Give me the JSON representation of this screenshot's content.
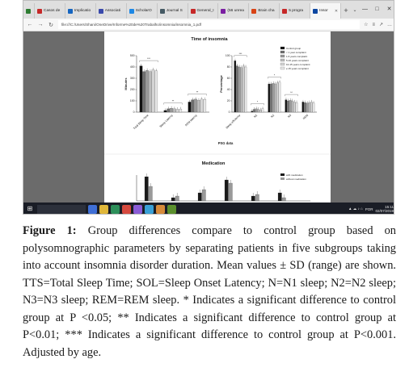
{
  "browser": {
    "tabs": [
      {
        "label": "",
        "color": "#2e7d32"
      },
      {
        "label": "Casos de",
        "color": "#c62828"
      },
      {
        "label": "Implicatio",
        "color": "#1565c0"
      },
      {
        "label": "Associati",
        "color": "#3949ab"
      },
      {
        "label": "ScholarO",
        "color": "#1e88e5"
      },
      {
        "label": "Journal S",
        "color": "#455a64"
      },
      {
        "label": "General_I",
        "color": "#c62828"
      },
      {
        "label": "(56 unrea",
        "color": "#7b1fa2"
      },
      {
        "label": "Brain cha",
        "color": "#d84315"
      },
      {
        "label": "5 progra",
        "color": "#c62828"
      },
      {
        "label": "Insor",
        "color": "#0d47a1"
      }
    ],
    "active_tab_close": "✕",
    "new_tab": "+",
    "tab_menu": "⌄",
    "window_controls": [
      "—",
      "□",
      "✕"
    ],
    "url": "file:///C:/Users/Shani/OneDrive/Informe%20de%20Trabalho/insomnia/insomnia_1.pdf",
    "nav": {
      "back": "←",
      "forward": "→",
      "refresh": "↻"
    }
  },
  "pdf": {
    "chart_title": "Time of insomnia",
    "chart2_title": "Medication",
    "legend": [
      "Control group",
      "< 1 year complaint",
      "1-5 years complaint",
      "5-10 years complaint",
      "10-15 years complaint",
      "≥ 15 years complaint"
    ],
    "legend2": [
      "with medication",
      "without medication"
    ],
    "ylabel_left": "Minutes",
    "ylabel_right": "Percentage",
    "xlabel": "PSG data",
    "left_categories": [
      "Total Sleep Time",
      "Sleep Latency",
      "REM latency"
    ],
    "right_categories": [
      "Sleep efficiency",
      "N1",
      "N2",
      "N3",
      "REM"
    ],
    "left_ticks": [
      "0",
      "100",
      "200",
      "300",
      "400",
      "500"
    ],
    "right_ticks": [
      "0",
      "20",
      "40",
      "60",
      "80",
      "100"
    ],
    "series_colors": [
      "#111111",
      "#6e6e6e",
      "#9a9a9a",
      "#bcbcbc",
      "#d4d4d4",
      "#e6e6e6"
    ],
    "sig_left": [
      "***",
      "**",
      "**"
    ],
    "sig_right": [
      "***",
      "*",
      "*",
      "**"
    ]
  },
  "chart_data": [
    {
      "type": "bar",
      "title": "Time of insomnia",
      "xlabel": "PSG data",
      "ylabel": "Minutes",
      "categories": [
        "Total Sleep Time",
        "Sleep Latency",
        "REM latency"
      ],
      "ylim": [
        0,
        500
      ],
      "series": [
        {
          "name": "Control group",
          "values": [
            410,
            15,
            90
          ]
        },
        {
          "name": "< 1 year complaint",
          "values": [
            360,
            30,
            110
          ]
        },
        {
          "name": "1-5 years complaint",
          "values": [
            370,
            35,
            115
          ]
        },
        {
          "name": "5-10 years complaint",
          "values": [
            360,
            30,
            105
          ]
        },
        {
          "name": "10-15 years complaint",
          "values": [
            375,
            25,
            115
          ]
        },
        {
          "name": "≥ 15 years complaint",
          "values": [
            365,
            28,
            112
          ]
        }
      ]
    },
    {
      "type": "bar",
      "title": "Time of insomnia",
      "xlabel": "PSG data",
      "ylabel": "Percentage",
      "categories": [
        "Sleep efficiency",
        "N1",
        "N2",
        "N3",
        "REM"
      ],
      "ylim": [
        0,
        100
      ],
      "series": [
        {
          "name": "Control group",
          "values": [
            91,
            2,
            50,
            22,
            18
          ]
        },
        {
          "name": "< 1 year complaint",
          "values": [
            82,
            5,
            50,
            20,
            17
          ]
        },
        {
          "name": "1-5 years complaint",
          "values": [
            80,
            6,
            51,
            21,
            16
          ]
        },
        {
          "name": "5-10 years complaint",
          "values": [
            79,
            5,
            50,
            20,
            17
          ]
        },
        {
          "name": "10-15 years complaint",
          "values": [
            82,
            4,
            52,
            18,
            18
          ]
        },
        {
          "name": "≥ 15 years complaint",
          "values": [
            80,
            6,
            53,
            17,
            16
          ]
        }
      ]
    }
  ],
  "taskbar": {
    "start": "⊞",
    "apps": [
      "#3f6fd6",
      "#e0b73a",
      "#2d8f5a",
      "#d64a3f",
      "#8a5cd6",
      "#3aa0d6",
      "#d68a3a",
      "#5a8f2d"
    ],
    "lang": "POR",
    "time": "15:11",
    "date": "02/07/2019",
    "tray_icons": "▲ ☁ ♪ ⌂"
  },
  "caption": {
    "label": "Figure 1:",
    "text": " Group differences compare to control group based on polysomnographic parameters by separating patients in five subgroups taking into account insomnia disorder duration. Mean values ± SD (range) are shown. TTS=Total Sleep Time; SOL=Sleep Onset Latency; N=N1 sleep; N2=N2 sleep; N3=N3 sleep; REM=REM sleep. * Indicates a significant difference to control group at P <0.05; ** Indicates a significant difference to control group at P<0.01; *** Indicates a significant difference to control group at P<0.001. Adjusted by age."
  }
}
